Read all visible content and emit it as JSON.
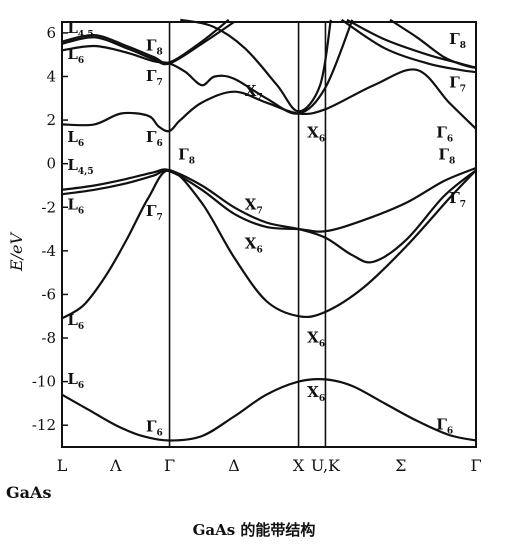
{
  "chart_data": {
    "type": "line",
    "title": "GaAs 的能带结构",
    "material": "GaAs",
    "ylabel": "E/eV",
    "xlabel": "",
    "ylim": [
      -13,
      6.5
    ],
    "y_ticks": [
      6,
      4,
      2,
      0,
      -2,
      -4,
      -6,
      -8,
      -10,
      -12
    ],
    "grid": false,
    "x_ticks": [
      {
        "label": "L",
        "pos": 0
      },
      {
        "label": "Λ",
        "pos": 0.5
      },
      {
        "label": "Γ",
        "pos": 1
      },
      {
        "label": "Δ",
        "pos": 1.6
      },
      {
        "label": "X",
        "pos": 2.2
      },
      {
        "label": "U,K",
        "pos": 2.45
      },
      {
        "label": "Σ",
        "pos": 3.15
      },
      {
        "label": "Γ",
        "pos": 3.85
      }
    ],
    "vertical_lines": [
      1,
      2.2,
      2.45
    ],
    "series": [
      {
        "points": [
          [
            0,
            -10.6
          ],
          [
            0.25,
            -11.3
          ],
          [
            0.5,
            -12.0
          ],
          [
            0.75,
            -12.5
          ],
          [
            1,
            -12.7
          ],
          [
            1.3,
            -12.5
          ],
          [
            1.6,
            -11.6
          ],
          [
            1.9,
            -10.6
          ],
          [
            2.2,
            -10.0
          ],
          [
            2.45,
            -9.9
          ],
          [
            2.7,
            -10.2
          ],
          [
            3.0,
            -11.0
          ],
          [
            3.3,
            -11.8
          ],
          [
            3.6,
            -12.45
          ],
          [
            3.85,
            -12.7
          ]
        ]
      },
      {
        "points": [
          [
            0,
            -7.1
          ],
          [
            0.2,
            -6.5
          ],
          [
            0.4,
            -5.2
          ],
          [
            0.6,
            -3.5
          ],
          [
            0.8,
            -1.6
          ],
          [
            1,
            -0.3
          ],
          [
            1.3,
            -1.8
          ],
          [
            1.6,
            -4.3
          ],
          [
            1.9,
            -6.3
          ],
          [
            2.2,
            -7.0
          ],
          [
            2.45,
            -6.8
          ],
          [
            2.8,
            -5.7
          ],
          [
            3.2,
            -3.8
          ],
          [
            3.6,
            -1.6
          ],
          [
            3.85,
            -0.3
          ]
        ]
      },
      {
        "points": [
          [
            0,
            -1.2
          ],
          [
            0.3,
            -1.0
          ],
          [
            0.6,
            -0.7
          ],
          [
            0.85,
            -0.4
          ],
          [
            1,
            -0.3
          ],
          [
            1.3,
            -1.0
          ],
          [
            1.6,
            -2.0
          ],
          [
            1.9,
            -2.7
          ],
          [
            2.2,
            -3.0
          ],
          [
            2.45,
            -3.4
          ],
          [
            2.7,
            -4.2
          ],
          [
            2.9,
            -4.5
          ],
          [
            3.2,
            -3.5
          ],
          [
            3.55,
            -1.5
          ],
          [
            3.85,
            -0.3
          ]
        ]
      },
      {
        "points": [
          [
            0,
            -1.4
          ],
          [
            0.3,
            -1.2
          ],
          [
            0.6,
            -0.9
          ],
          [
            0.85,
            -0.55
          ],
          [
            1,
            -0.35
          ],
          [
            1.3,
            -1.2
          ],
          [
            1.6,
            -2.3
          ],
          [
            1.9,
            -2.9
          ],
          [
            2.2,
            -3.0
          ],
          [
            2.45,
            -3.1
          ],
          [
            2.8,
            -2.6
          ],
          [
            3.2,
            -1.8
          ],
          [
            3.55,
            -0.8
          ],
          [
            3.85,
            -0.2
          ]
        ]
      },
      {
        "points": [
          [
            0,
            1.8
          ],
          [
            0.3,
            1.8
          ],
          [
            0.55,
            2.3
          ],
          [
            0.8,
            2.2
          ],
          [
            0.9,
            1.7
          ],
          [
            1,
            1.5
          ],
          [
            1.1,
            2.0
          ],
          [
            1.3,
            2.8
          ],
          [
            1.6,
            3.3
          ],
          [
            1.9,
            2.8
          ],
          [
            2.2,
            2.3
          ],
          [
            2.45,
            2.5
          ],
          [
            2.9,
            3.6
          ],
          [
            3.3,
            4.3
          ],
          [
            3.6,
            2.8
          ],
          [
            3.85,
            1.6
          ]
        ]
      },
      {
        "points": [
          [
            0,
            5.2
          ],
          [
            0.3,
            5.4
          ],
          [
            0.6,
            5.1
          ],
          [
            0.85,
            4.7
          ],
          [
            1,
            4.6
          ],
          [
            1.15,
            4.2
          ],
          [
            1.3,
            3.6
          ],
          [
            1.42,
            4.0
          ],
          [
            1.6,
            3.9
          ],
          [
            1.9,
            3.0
          ],
          [
            2.2,
            2.3
          ],
          [
            2.45,
            3.5
          ],
          [
            2.7,
            6.6
          ]
        ]
      },
      {
        "points": [
          [
            0,
            5.5
          ],
          [
            0.3,
            5.8
          ],
          [
            0.6,
            5.3
          ],
          [
            0.85,
            4.8
          ],
          [
            1,
            4.6
          ],
          [
            1.3,
            5.5
          ],
          [
            1.6,
            6.5
          ]
        ]
      },
      {
        "points": [
          [
            0,
            5.6
          ],
          [
            0.3,
            5.9
          ],
          [
            0.6,
            5.4
          ],
          [
            0.85,
            4.9
          ],
          [
            1,
            4.65
          ],
          [
            1.3,
            5.6
          ],
          [
            1.55,
            6.6
          ]
        ]
      },
      {
        "points": [
          [
            1.1,
            6.6
          ],
          [
            1.4,
            6.3
          ],
          [
            1.7,
            5.3
          ],
          [
            2.0,
            3.6
          ],
          [
            2.2,
            2.4
          ],
          [
            2.4,
            3.6
          ],
          [
            2.5,
            6.6
          ]
        ]
      },
      {
        "points": [
          [
            2.65,
            6.6
          ],
          [
            3.0,
            5.7
          ],
          [
            3.4,
            5.0
          ],
          [
            3.7,
            4.6
          ],
          [
            3.85,
            4.4
          ]
        ]
      },
      {
        "points": [
          [
            2.6,
            6.6
          ],
          [
            3.0,
            5.3
          ],
          [
            3.4,
            4.6
          ],
          [
            3.7,
            4.3
          ],
          [
            3.85,
            4.2
          ]
        ]
      },
      {
        "points": [
          [
            3.05,
            6.6
          ],
          [
            3.3,
            5.8
          ],
          [
            3.55,
            4.9
          ],
          [
            3.75,
            4.5
          ],
          [
            3.85,
            4.4
          ]
        ]
      }
    ],
    "annotations": [
      {
        "main": "L",
        "sub": "4,5",
        "x": 0.05,
        "y": 6.0
      },
      {
        "main": "L",
        "sub": "6",
        "x": 0.05,
        "y": 4.8
      },
      {
        "main": "Γ",
        "sub": "8",
        "x": 0.78,
        "y": 5.2
      },
      {
        "main": "Γ",
        "sub": "7",
        "x": 0.78,
        "y": 3.8
      },
      {
        "main": "L",
        "sub": "6",
        "x": 0.05,
        "y": 1.0
      },
      {
        "main": "Γ",
        "sub": "6",
        "x": 0.78,
        "y": 1.0
      },
      {
        "main": "L",
        "sub": "4,5",
        "x": 0.05,
        "y": -0.3
      },
      {
        "main": "Γ",
        "sub": "8",
        "x": 1.08,
        "y": 0.2
      },
      {
        "main": "L",
        "sub": "6",
        "x": 0.05,
        "y": -2.1
      },
      {
        "main": "Γ",
        "sub": "7",
        "x": 0.78,
        "y": -2.4
      },
      {
        "main": "X",
        "sub": "7",
        "x": 1.7,
        "y": 3.1
      },
      {
        "main": "X",
        "sub": "6",
        "x": 2.28,
        "y": 1.2
      },
      {
        "main": "X",
        "sub": "7",
        "x": 1.7,
        "y": -2.1
      },
      {
        "main": "X",
        "sub": "6",
        "x": 1.7,
        "y": -3.9
      },
      {
        "main": "L",
        "sub": "6",
        "x": 0.05,
        "y": -7.4
      },
      {
        "main": "X",
        "sub": "6",
        "x": 2.28,
        "y": -8.2
      },
      {
        "main": "L",
        "sub": "6",
        "x": 0.05,
        "y": -10.1
      },
      {
        "main": "X",
        "sub": "6",
        "x": 2.28,
        "y": -10.7
      },
      {
        "main": "Γ",
        "sub": "6",
        "x": 0.78,
        "y": -12.3
      },
      {
        "main": "Γ",
        "sub": "8",
        "x": 3.6,
        "y": 5.5
      },
      {
        "main": "Γ",
        "sub": "7",
        "x": 3.6,
        "y": 3.5
      },
      {
        "main": "Γ",
        "sub": "6",
        "x": 3.48,
        "y": 1.2
      },
      {
        "main": "Γ",
        "sub": "8",
        "x": 3.5,
        "y": 0.2
      },
      {
        "main": "Γ",
        "sub": "7",
        "x": 3.6,
        "y": -1.8
      },
      {
        "main": "Γ",
        "sub": "6",
        "x": 3.48,
        "y": -12.2
      }
    ]
  }
}
